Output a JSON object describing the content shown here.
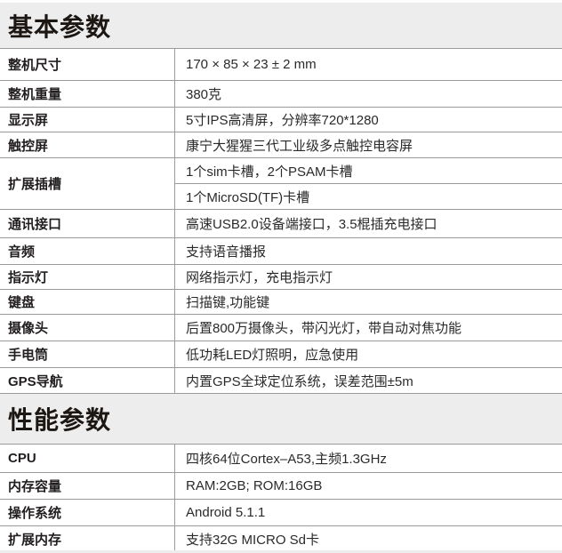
{
  "sections": [
    {
      "title": "基本参数",
      "rows": [
        {
          "label": "整机尺寸",
          "values": [
            "170 × 85 × 23 ± 2 mm"
          ]
        },
        {
          "label": "整机重量",
          "values": [
            "380克"
          ]
        },
        {
          "label": "显示屏",
          "values": [
            "5寸IPS高清屏，分辨率720*1280"
          ]
        },
        {
          "label": "触控屏",
          "values": [
            "康宁大猩猩三代工业级多点触控电容屏"
          ]
        },
        {
          "label": "扩展插槽",
          "values": [
            "1个sim卡槽，2个PSAM卡槽",
            "1个MicroSD(TF)卡槽"
          ]
        },
        {
          "label": "通讯接口",
          "values": [
            "高速USB2.0设备端接口，3.5棍插充电接口"
          ]
        },
        {
          "label": "音频",
          "values": [
            "支持语音播报"
          ]
        },
        {
          "label": "指示灯",
          "values": [
            "网络指示灯，充电指示灯"
          ]
        },
        {
          "label": "键盘",
          "values": [
            "扫描键,功能键"
          ]
        },
        {
          "label": "摄像头",
          "values": [
            "后置800万摄像头，带闪光灯，带自动对焦功能"
          ]
        },
        {
          "label": "手电筒",
          "values": [
            "低功耗LED灯照明，应急使用"
          ]
        },
        {
          "label": "GPS导航",
          "values": [
            "内置GPS全球定位系统，误差范围±5m"
          ]
        }
      ]
    },
    {
      "title": "性能参数",
      "rows": [
        {
          "label": "CPU",
          "values": [
            "四核64位Cortex–A53,主频1.3GHz"
          ]
        },
        {
          "label": "内存容量",
          "values": [
            "RAM:2GB; ROM:16GB"
          ]
        },
        {
          "label": "操作系统",
          "values": [
            "Android 5.1.1"
          ]
        },
        {
          "label": "扩展内存",
          "values": [
            "支持32G MICRO Sd卡"
          ]
        }
      ]
    }
  ],
  "colors": {
    "band_bg": "#ededee",
    "border": "#9b9b9b",
    "text": "#231f20"
  }
}
